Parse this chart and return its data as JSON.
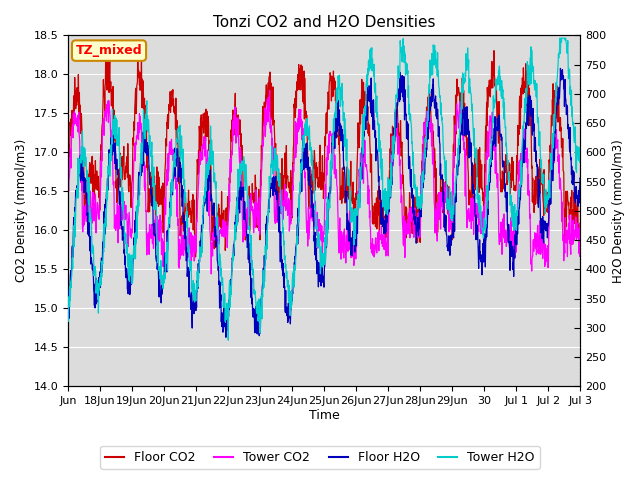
{
  "title": "Tonzi CO2 and H2O Densities",
  "xlabel": "Time",
  "ylabel_left": "CO2 Density (mmol/m3)",
  "ylabel_right": "H2O Density (mmol/m3)",
  "annotation": "TZ_mixed",
  "ylim_left": [
    14.0,
    18.5
  ],
  "ylim_right": [
    200,
    800
  ],
  "colors": {
    "floor_co2": "#CC0000",
    "tower_co2": "#FF00FF",
    "floor_h2o": "#0000BB",
    "tower_h2o": "#00CCCC"
  },
  "legend_labels": [
    "Floor CO2",
    "Tower CO2",
    "Floor H2O",
    "Tower H2O"
  ],
  "bg_color": "#DCDCDC",
  "annotation_box": {
    "facecolor": "#FFFFCC",
    "edgecolor": "#CC8800"
  },
  "x_tick_positions": [
    0,
    1,
    2,
    3,
    4,
    5,
    6,
    7,
    8,
    9,
    10,
    11,
    12,
    13,
    14,
    15,
    16
  ],
  "x_tick_labels": [
    "Jun",
    "18Jun",
    "19Jun",
    "20Jun",
    "21Jun",
    "22Jun",
    "23Jun",
    "24Jun",
    "25Jun",
    "26Jun",
    "27Jun",
    "28Jun",
    "29Jun",
    "30",
    "Jul 1",
    "Jul 2",
    "Jul 3"
  ],
  "yticks_left": [
    14.0,
    14.5,
    15.0,
    15.5,
    16.0,
    16.5,
    17.0,
    17.5,
    18.0,
    18.5
  ],
  "yticks_right": [
    200,
    250,
    300,
    350,
    400,
    450,
    500,
    550,
    600,
    650,
    700,
    750,
    800
  ]
}
